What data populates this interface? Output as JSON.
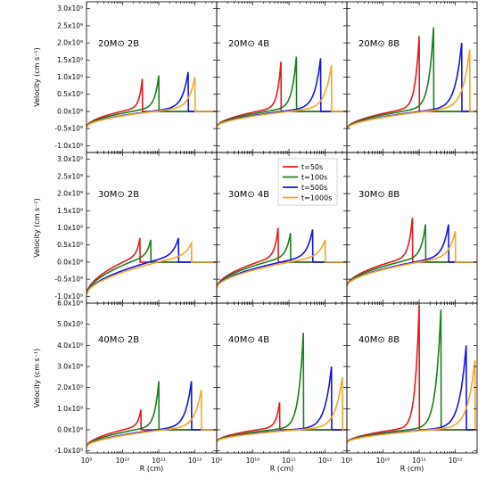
{
  "chart_data": {
    "type": "line",
    "xlabel": "R (cm)",
    "ylabel": "Velocity (cm s⁻¹)",
    "x_scale": "log",
    "xlim": [
      1000000000.0,
      4000000000000.0
    ],
    "x_ticks": [
      {
        "label": "10⁹",
        "value": 1000000000.0
      },
      {
        "label": "10¹⁰",
        "value": 10000000000.0
      },
      {
        "label": "10¹¹",
        "value": 100000000000.0
      },
      {
        "label": "10¹²",
        "value": 1000000000000.0
      }
    ],
    "legend": {
      "placement": "top-left of middle panel",
      "entries": [
        {
          "label": "t=50s",
          "color": "#e41a1c"
        },
        {
          "label": "t=100s",
          "color": "#1b7f1b"
        },
        {
          "label": "t=500s",
          "color": "#1414e6"
        },
        {
          "label": "t=1000s",
          "color": "#f5a623"
        }
      ]
    },
    "rows": [
      {
        "ylim": [
          -1200000000.0,
          3200000000.0
        ],
        "y_ticks": [
          "-1.0x10⁹",
          "-0.5x10⁹",
          "0.0x10⁹",
          "0.5x10⁹",
          "1.0x10⁹",
          "1.5x10⁹",
          "2.0x10⁹",
          "2.5x10⁹",
          "3.0x10⁹"
        ],
        "y_values": [
          -1000000000.0,
          -500000000.0,
          0,
          500000000.0,
          1000000000.0,
          1500000000.0,
          2000000000.0,
          2500000000.0,
          3000000000.0
        ],
        "panels": [
          {
            "label": "20M⊙ 2B",
            "peaks": [
              {
                "r": 35000000000.0,
                "v": 950000000.0
              },
              {
                "r": 100000000000.0,
                "v": 1050000000.0
              },
              {
                "r": 650000000000.0,
                "v": 1150000000.0
              },
              {
                "r": 1000000000000.0,
                "v": 1000000000.0
              }
            ],
            "v0": -450000000.0
          },
          {
            "label": "20M⊙ 4B",
            "peaks": [
              {
                "r": 60000000000.0,
                "v": 1450000000.0
              },
              {
                "r": 160000000000.0,
                "v": 1600000000.0
              },
              {
                "r": 750000000000.0,
                "v": 1550000000.0
              },
              {
                "r": 1500000000000.0,
                "v": 1350000000.0
              }
            ],
            "v0": -450000000.0
          },
          {
            "label": "20M⊙ 8B",
            "peaks": [
              {
                "r": 100000000000.0,
                "v": 2200000000.0
              },
              {
                "r": 250000000000.0,
                "v": 2450000000.0
              },
              {
                "r": 1500000000000.0,
                "v": 2000000000.0
              },
              {
                "r": 2500000000000.0,
                "v": 1800000000.0
              }
            ],
            "v0": -500000000.0
          }
        ]
      },
      {
        "ylim": [
          -1200000000.0,
          3200000000.0
        ],
        "y_ticks": [
          "-1.0x10⁹",
          "-0.5x10⁹",
          "0.0x10⁹",
          "0.5x10⁹",
          "1.0x10⁹",
          "1.5x10⁹",
          "2.0x10⁹",
          "2.5x10⁹",
          "3.0x10⁹"
        ],
        "y_values": [
          -1000000000.0,
          -500000000.0,
          0,
          500000000.0,
          1000000000.0,
          1500000000.0,
          2000000000.0,
          2500000000.0,
          3000000000.0
        ],
        "panels": [
          {
            "label": "30M⊙ 2B",
            "peaks": [
              {
                "r": 30000000000.0,
                "v": 700000000.0
              },
              {
                "r": 60000000000.0,
                "v": 650000000.0
              },
              {
                "r": 350000000000.0,
                "v": 700000000.0
              },
              {
                "r": 800000000000.0,
                "v": 550000000.0
              }
            ],
            "v0": -950000000.0
          },
          {
            "label": "30M⊙ 4B",
            "peaks": [
              {
                "r": 50000000000.0,
                "v": 1000000000.0
              },
              {
                "r": 110000000000.0,
                "v": 850000000.0
              },
              {
                "r": 450000000000.0,
                "v": 950000000.0
              },
              {
                "r": 1000000000000.0,
                "v": 650000000.0
              }
            ],
            "v0": -750000000.0
          },
          {
            "label": "30M⊙ 8B",
            "peaks": [
              {
                "r": 65000000000.0,
                "v": 1300000000.0
              },
              {
                "r": 150000000000.0,
                "v": 1100000000.0
              },
              {
                "r": 650000000000.0,
                "v": 1100000000.0
              },
              {
                "r": 1000000000000.0,
                "v": 900000000.0
              }
            ],
            "v0": -700000000.0
          }
        ]
      },
      {
        "ylim": [
          -1100000000.0,
          6000000000.0
        ],
        "y_ticks": [
          "-1.0x10⁹",
          "0.0x10⁹",
          "1.0x10⁹",
          "2.0x10⁹",
          "3.0x10⁹",
          "4.0x10⁹",
          "5.0x10⁹",
          "6.0x10⁹"
        ],
        "y_values": [
          -1000000000.0,
          0,
          1000000000.0,
          2000000000.0,
          3000000000.0,
          4000000000.0,
          5000000000.0,
          6000000000.0
        ],
        "panels": [
          {
            "label": "40M⊙ 2B",
            "peaks": [
              {
                "r": 32000000000.0,
                "v": 950000000.0
              },
              {
                "r": 100000000000.0,
                "v": 2300000000.0
              },
              {
                "r": 800000000000.0,
                "v": 2300000000.0
              },
              {
                "r": 1500000000000.0,
                "v": 1900000000.0
              }
            ],
            "v0": -800000000.0
          },
          {
            "label": "40M⊙ 4B",
            "peaks": [
              {
                "r": 55000000000.0,
                "v": 1300000000.0
              },
              {
                "r": 250000000000.0,
                "v": 4600000000.0
              },
              {
                "r": 1500000000000.0,
                "v": 3000000000.0
              },
              {
                "r": 3000000000000.0,
                "v": 2500000000.0
              }
            ],
            "v0": -550000000.0
          },
          {
            "label": "40M⊙ 8B",
            "peaks": [
              {
                "r": 100000000000.0,
                "v": 5900000000.0
              },
              {
                "r": 400000000000.0,
                "v": 5700000000.0
              },
              {
                "r": 2000000000000.0,
                "v": 4000000000.0
              },
              {
                "r": 3500000000000.0,
                "v": 3300000000.0
              }
            ],
            "v0": -600000000.0
          }
        ]
      }
    ]
  }
}
